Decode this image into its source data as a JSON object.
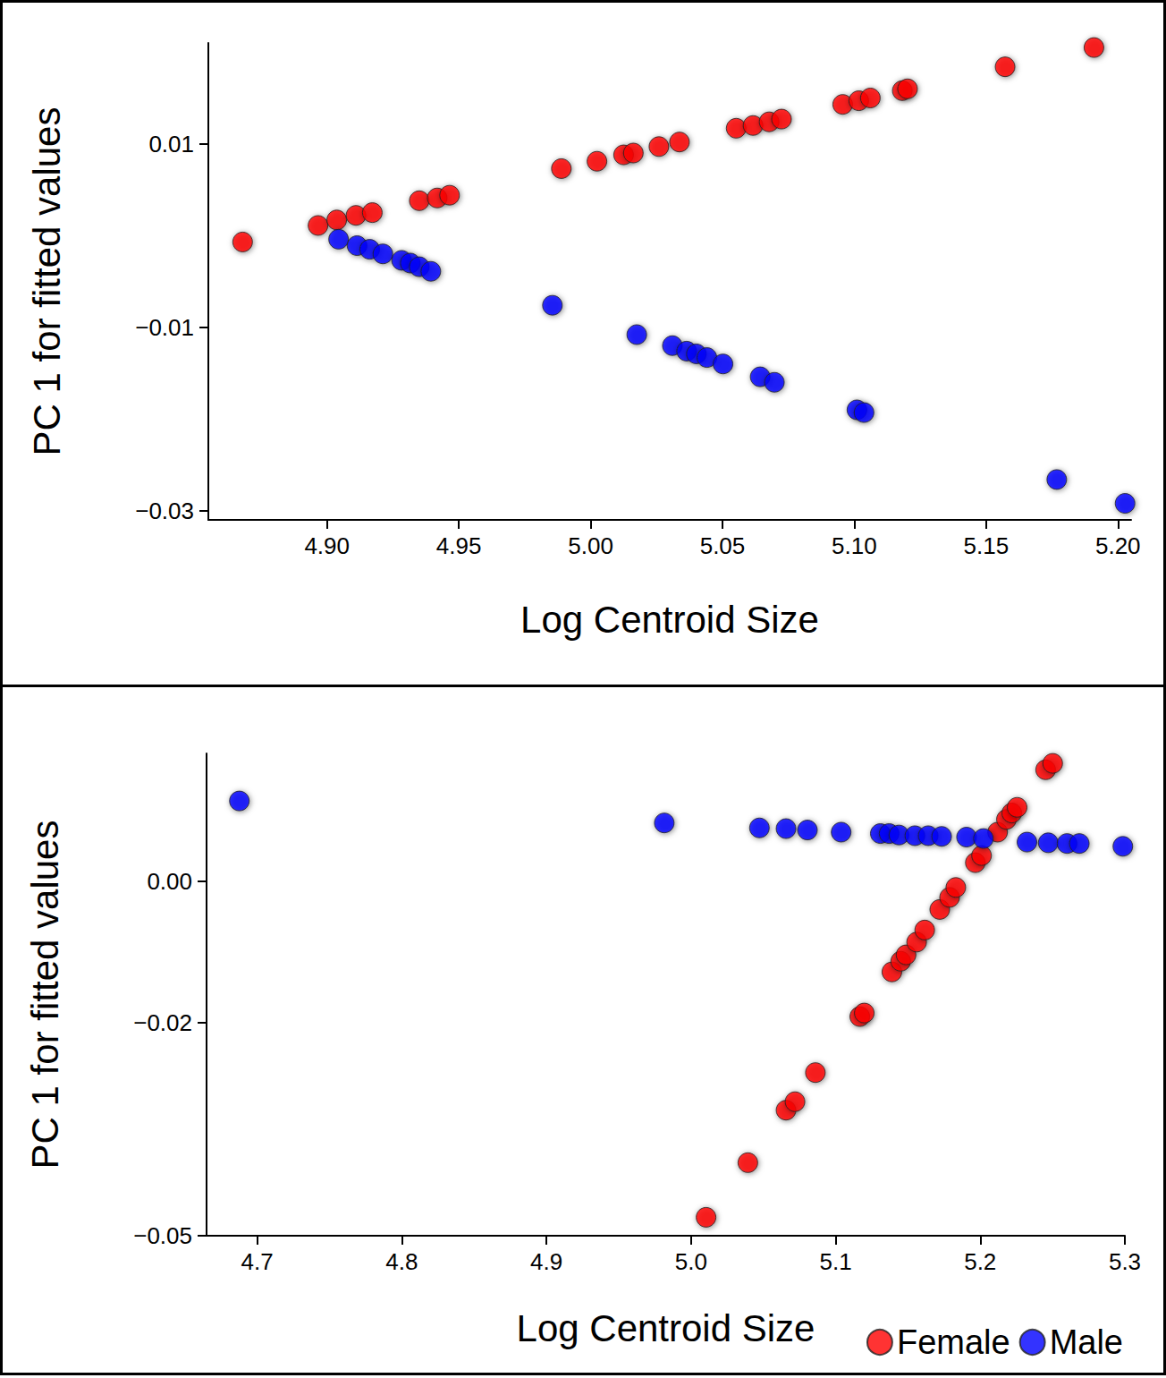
{
  "chart_data": [
    {
      "type": "scatter",
      "x_label": "Log Centroid Size",
      "y_label": "PC 1 for fitted values",
      "xlim": [
        4.855,
        5.205
      ],
      "xticks": [
        {
          "value": 4.9,
          "label": "4.90"
        },
        4.95,
        {
          "value": 5.0,
          "label": "5.00"
        },
        5.05,
        {
          "value": 5.1,
          "label": "5.10"
        },
        5.15,
        {
          "value": 5.2,
          "label": "5.20"
        }
      ],
      "ylim": [
        -0.031,
        0.021
      ],
      "yticks": [
        {
          "value": -0.03,
          "label": "−0.03"
        },
        {
          "value": -0.01,
          "label": "−0.01"
        },
        0.01
      ],
      "grid": false,
      "marker": "circle",
      "series": [
        {
          "name": "Female",
          "color": "#ff0000",
          "x": [
            4.868,
            4.8966,
            4.9037,
            4.911,
            4.9172,
            4.935,
            4.9418,
            4.9465,
            4.9889,
            5.0024,
            5.0125,
            5.0162,
            5.0259,
            5.0337,
            5.0552,
            5.0616,
            5.0677,
            5.0724,
            5.0956,
            5.1017,
            5.1061,
            5.1182,
            5.1202,
            5.1572,
            5.1909
          ],
          "values": [
            -0.0007,
            0.0011,
            0.0017,
            0.0022,
            0.0025,
            0.0038,
            0.0041,
            0.0044,
            0.0073,
            0.0081,
            0.0088,
            0.009,
            0.0097,
            0.0102,
            0.0117,
            0.012,
            0.0124,
            0.0127,
            0.0143,
            0.0147,
            0.015,
            0.0158,
            0.016,
            0.0184,
            0.0205
          ]
        },
        {
          "name": "Male",
          "color": "#0000ff",
          "x": [
            4.9044,
            4.9114,
            4.9162,
            4.9212,
            4.9283,
            4.9316,
            4.935,
            4.9394,
            4.9855,
            5.0175,
            5.031,
            5.0364,
            5.0401,
            5.0441,
            5.0502,
            5.0643,
            5.0697,
            5.101,
            5.1037,
            5.1768,
            5.2027
          ],
          "values": [
            -0.0004,
            -0.0011,
            -0.0015,
            -0.002,
            -0.0027,
            -0.003,
            -0.0034,
            -0.0039,
            -0.0076,
            -0.0108,
            -0.012,
            -0.0126,
            -0.0129,
            -0.0133,
            -0.014,
            -0.0154,
            -0.016,
            -0.019,
            -0.0193,
            -0.0266,
            -0.0292
          ]
        }
      ]
    },
    {
      "type": "scatter",
      "x_label": "Log Centroid Size",
      "y_label": "PC 1 for fitted values",
      "xlim": [
        4.665,
        5.3
      ],
      "xticks": [
        4.7,
        4.8,
        4.9,
        {
          "value": 5.0,
          "label": "5.0"
        },
        5.1,
        5.2,
        5.3
      ],
      "ylim": [
        -0.05,
        0.018
      ],
      "yticks": [
        {
          "value": -0.05,
          "label": "−0.05"
        },
        {
          "value": -0.02,
          "label": "−0.02"
        },
        {
          "value": 0,
          "label": "0.00"
        }
      ],
      "grid": false,
      "marker": "circle",
      "legend": "bottom-right",
      "series": [
        {
          "name": "Female",
          "color": "#ff0000",
          "x": [
            5.0104,
            5.0393,
            5.0657,
            5.0719,
            5.086,
            5.1167,
            5.1198,
            5.1389,
            5.145,
            5.1487,
            5.156,
            5.1616,
            5.172,
            5.1788,
            5.1831,
            5.1966,
            5.2009,
            5.212,
            5.2181,
            5.2218,
            5.2255,
            5.2452,
            5.2501
          ],
          "values": [
            -0.0474,
            -0.0397,
            -0.0323,
            -0.0311,
            -0.027,
            -0.0191,
            -0.0186,
            -0.0128,
            -0.0113,
            -0.0104,
            -0.0086,
            -0.0069,
            -0.004,
            -0.0023,
            -0.0009,
            0.0026,
            0.0036,
            0.0069,
            0.0087,
            0.0096,
            0.0104,
            0.0157,
            0.0166
          ]
        },
        {
          "name": "Male",
          "color": "#0000ff",
          "x": [
            4.6877,
            4.9815,
            5.0473,
            5.0657,
            5.0805,
            5.1038,
            5.1309,
            5.137,
            5.1438,
            5.1548,
            5.164,
            5.1733,
            5.1905,
            5.2022,
            5.2323,
            5.247,
            5.26,
            5.2685,
            5.2986
          ],
          "values": [
            0.0113,
            0.0082,
            0.0075,
            0.0074,
            0.0072,
            0.0069,
            0.0067,
            0.0067,
            0.0065,
            0.0064,
            0.0064,
            0.0063,
            0.0062,
            0.006,
            0.0055,
            0.0054,
            0.0053,
            0.0053,
            0.0049
          ]
        }
      ]
    }
  ]
}
